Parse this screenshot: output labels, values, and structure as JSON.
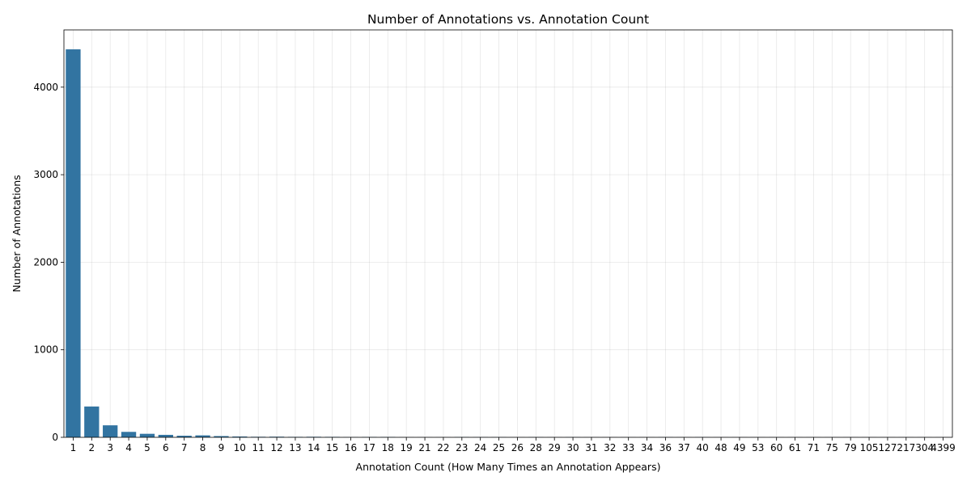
{
  "chart_data": {
    "type": "bar",
    "title": "Number of Annotations vs. Annotation Count",
    "xlabel": "Annotation Count (How Many Times an Annotation Appears)",
    "ylabel": "Number of Annotations",
    "categories": [
      "1",
      "2",
      "3",
      "4",
      "5",
      "6",
      "7",
      "8",
      "9",
      "10",
      "11",
      "12",
      "13",
      "14",
      "15",
      "16",
      "17",
      "18",
      "19",
      "21",
      "22",
      "23",
      "24",
      "25",
      "26",
      "28",
      "29",
      "30",
      "31",
      "32",
      "33",
      "34",
      "36",
      "37",
      "40",
      "48",
      "49",
      "53",
      "60",
      "61",
      "71",
      "75",
      "79",
      "105",
      "127",
      "217",
      "304",
      "4399"
    ],
    "values": [
      4432,
      352,
      137,
      62,
      40,
      28,
      18,
      22,
      14,
      9,
      6,
      7,
      5,
      6,
      5,
      2,
      4,
      4,
      1,
      1,
      1,
      3,
      2,
      2,
      1,
      2,
      1,
      2,
      1,
      1,
      1,
      1,
      2,
      1,
      2,
      1,
      1,
      1,
      1,
      1,
      1,
      1,
      1,
      1,
      1,
      1,
      1,
      1
    ],
    "ylim": [
      0,
      4654
    ],
    "yticks": [
      0,
      1000,
      2000,
      3000,
      4000
    ],
    "grid": true,
    "bar_color": "#3274a1"
  }
}
